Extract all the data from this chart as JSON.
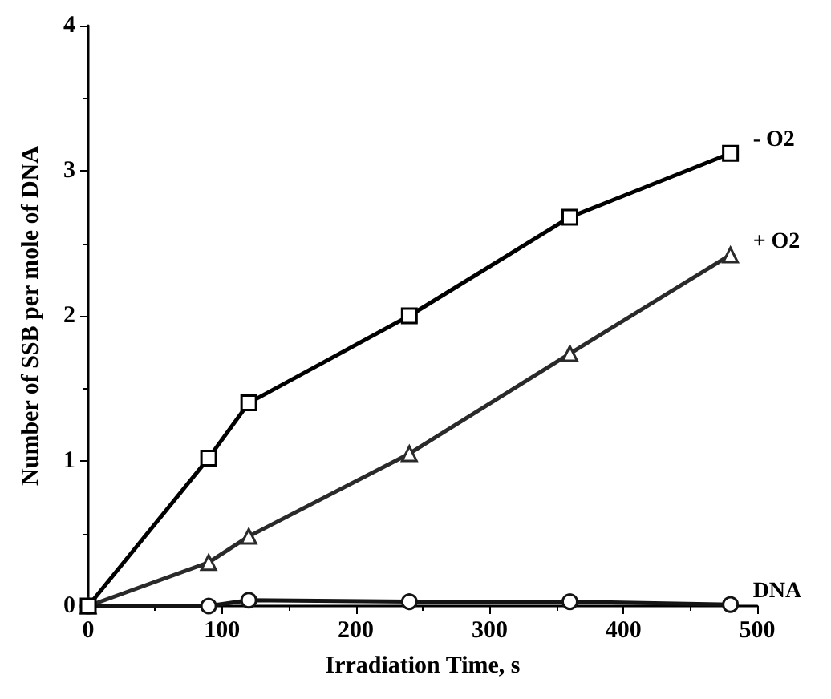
{
  "chart_data": {
    "type": "line",
    "xlabel": "Irradiation Time, s",
    "ylabel": "Number of SSB per mole of DNA",
    "x": [
      0,
      90,
      120,
      240,
      360,
      480
    ],
    "xlim": [
      0,
      500
    ],
    "xticks": [
      0,
      100,
      200,
      300,
      400,
      500
    ],
    "ylim": [
      0,
      4
    ],
    "yticks": [
      0,
      1,
      2,
      3,
      4
    ],
    "grid": false,
    "legend": false,
    "line_style": "solid",
    "series": [
      {
        "name": "- O2",
        "color": "#000000",
        "marker": "square",
        "values": [
          0,
          1.02,
          1.4,
          2.0,
          2.68,
          3.12
        ]
      },
      {
        "name": "+ O2",
        "color": "#2a2a2a",
        "marker": "triangle",
        "values": [
          0,
          0.3,
          0.48,
          1.05,
          1.74,
          2.42
        ]
      },
      {
        "name": "DNA",
        "color": "#141414",
        "marker": "circle",
        "values": [
          0,
          0,
          0.04,
          0.03,
          0.03,
          0.01
        ]
      }
    ]
  }
}
